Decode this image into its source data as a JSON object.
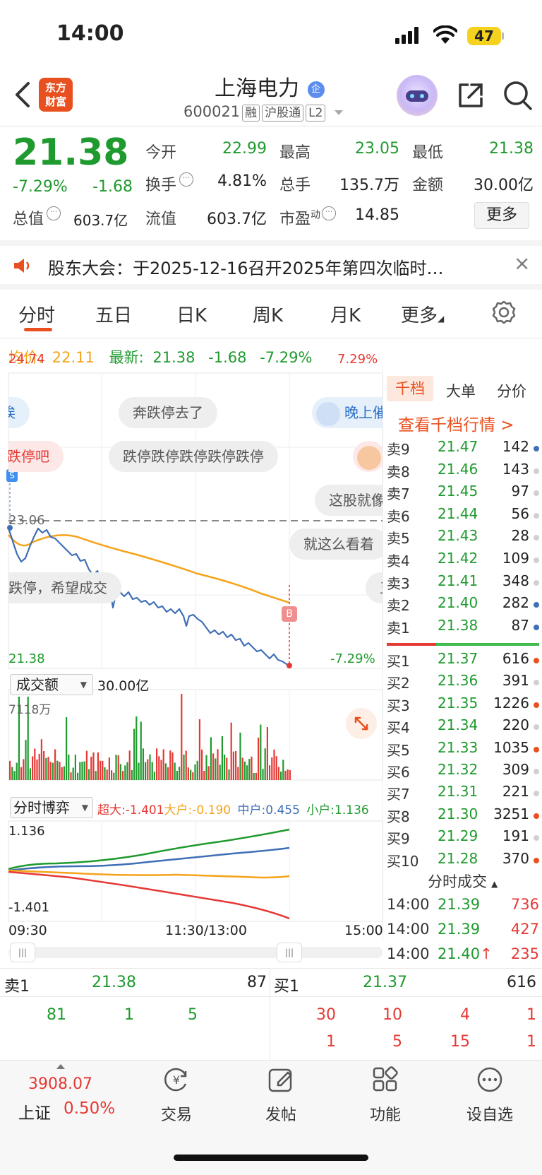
{
  "status_bar": {
    "time": "14:00",
    "battery": "47"
  },
  "header": {
    "logo_line1": "东方",
    "logo_line2": "财富",
    "stock_name": "上海电力",
    "badge": "企",
    "stock_code": "600021",
    "tags": [
      "融",
      "沪股通",
      "L2"
    ]
  },
  "quote": {
    "price": "21.38",
    "change_pct": "-7.29%",
    "change": "-1.68",
    "open_label": "今开",
    "open": "22.99",
    "high_label": "最高",
    "high": "23.05",
    "low_label": "最低",
    "low": "21.38",
    "turnover_label": "换手",
    "turnover": "4.81%",
    "volume_label": "总手",
    "volume": "135.7万",
    "amount_label": "金额",
    "amount": "30.00亿",
    "mcap_label": "总值",
    "mcap": "603.7亿",
    "float_label": "流值",
    "float": "603.7亿",
    "pe_label": "市盈",
    "pe_sup": "动",
    "pe": "14.85",
    "more": "更多"
  },
  "notice": {
    "text": "股东大会：于2025-12-16召开2025年第四次临时…"
  },
  "tabs": [
    "分时",
    "五日",
    "日K",
    "周K",
    "月K",
    "更多"
  ],
  "avg_line": {
    "avg_label": "均价:",
    "avg": "22.11",
    "latest_label": "最新:",
    "latest": "21.38",
    "chg": "-1.68",
    "pct": "-7.29%"
  },
  "chart": {
    "y_top": "24.74",
    "y_top_pct": "7.29%",
    "y_mid": "23.06",
    "y_bottom": "21.38",
    "y_bottom_pct": "-7.29%",
    "marker_s": "S",
    "marker_b": "B",
    "bubbles": [
      "跌停吧",
      "奔跌停去了",
      "晚上催",
      "跌停跌停跌停跌停跌停",
      "这股就像",
      "就这么看着",
      "跌停，希望成交",
      "五",
      "诶"
    ],
    "volume_selector": "成交额",
    "volume_total": "30.00亿",
    "volume_max": "7118万",
    "game_selector": "分时博弈",
    "game_items": [
      {
        "label": "超大:",
        "value": "-1.401",
        "color": "#e53935"
      },
      {
        "label": "大户:",
        "value": "-0.190",
        "color": "#f5a31a"
      },
      {
        "label": "中户:",
        "value": "0.455",
        "color": "#3f6fb6"
      },
      {
        "label": "小户:",
        "value": "1.136",
        "color": "#1f9a2e"
      }
    ],
    "game_top": "1.136",
    "game_bottom": "-1.401",
    "time_labels": [
      "09:30",
      "11:30/13:00",
      "15:00"
    ]
  },
  "order_book": {
    "tabs": [
      "千档",
      "大单",
      "分价"
    ],
    "link": "查看千档行情 >",
    "sells": [
      {
        "label": "卖9",
        "price": "21.47",
        "vol": "142",
        "dot": "#3f6fb6"
      },
      {
        "label": "卖8",
        "price": "21.46",
        "vol": "143",
        "dot": "#d0d0d0"
      },
      {
        "label": "卖7",
        "price": "21.45",
        "vol": "97",
        "dot": "#d0d0d0"
      },
      {
        "label": "卖6",
        "price": "21.44",
        "vol": "56",
        "dot": "#d0d0d0"
      },
      {
        "label": "卖5",
        "price": "21.43",
        "vol": "28",
        "dot": "#d0d0d0"
      },
      {
        "label": "卖4",
        "price": "21.42",
        "vol": "109",
        "dot": "#d0d0d0"
      },
      {
        "label": "卖3",
        "price": "21.41",
        "vol": "348",
        "dot": "#d0d0d0"
      },
      {
        "label": "卖2",
        "price": "21.40",
        "vol": "282",
        "dot": "#3f6fb6"
      },
      {
        "label": "卖1",
        "price": "21.38",
        "vol": "87",
        "dot": "#3f6fb6"
      }
    ],
    "buys": [
      {
        "label": "买1",
        "price": "21.37",
        "vol": "616",
        "dot": "#e8501f"
      },
      {
        "label": "买2",
        "price": "21.36",
        "vol": "391",
        "dot": "#d0d0d0"
      },
      {
        "label": "买3",
        "price": "21.35",
        "vol": "1226",
        "dot": "#e8501f"
      },
      {
        "label": "买4",
        "price": "21.34",
        "vol": "220",
        "dot": "#d0d0d0"
      },
      {
        "label": "买5",
        "price": "21.33",
        "vol": "1035",
        "dot": "#e8501f"
      },
      {
        "label": "买6",
        "price": "21.32",
        "vol": "309",
        "dot": "#d0d0d0"
      },
      {
        "label": "买7",
        "price": "21.31",
        "vol": "221",
        "dot": "#d0d0d0"
      },
      {
        "label": "买8",
        "price": "21.30",
        "vol": "3251",
        "dot": "#e8501f"
      },
      {
        "label": "买9",
        "price": "21.29",
        "vol": "191",
        "dot": "#d0d0d0"
      },
      {
        "label": "买10",
        "price": "21.28",
        "vol": "370",
        "dot": "#e8501f"
      }
    ],
    "trades_title": "分时成交",
    "trades": [
      {
        "time": "14:00",
        "price": "21.39",
        "vol": "736",
        "arrow": ""
      },
      {
        "time": "14:00",
        "price": "21.39",
        "vol": "427",
        "arrow": ""
      },
      {
        "time": "14:00",
        "price": "21.40",
        "vol": "235",
        "arrow": "↑"
      }
    ]
  },
  "bid_ask": {
    "sell_label": "卖1",
    "sell_price": "21.38",
    "sell_vol": "87",
    "buy_label": "买1",
    "buy_price": "21.37",
    "buy_vol": "616",
    "sell_queue": [
      "81",
      "1",
      "5"
    ],
    "buy_queue_row1": [
      "30",
      "10",
      "4",
      "1"
    ],
    "buy_queue_row2": [
      "1",
      "5",
      "15",
      "1"
    ]
  },
  "bottom_nav": {
    "index_value": "3908.07",
    "index_name": "上证",
    "index_pct": "0.50%",
    "items": [
      "交易",
      "发帖",
      "功能",
      "设自选"
    ]
  }
}
